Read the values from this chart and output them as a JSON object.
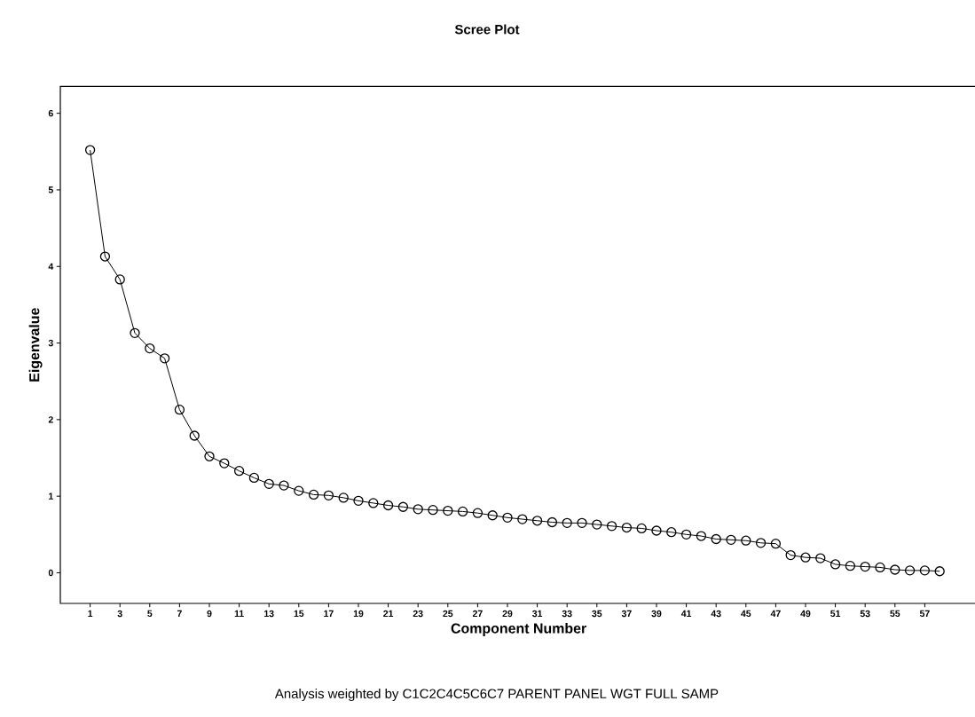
{
  "chart_data": {
    "type": "line",
    "title": "Scree Plot",
    "xlabel": "Component Number",
    "ylabel": "Eigenvalue",
    "annotations": [
      "Analysis weighted by C1C2C4C5C6C7 PARENT PANEL WGT FULL SAMP"
    ],
    "x": [
      1,
      2,
      3,
      4,
      5,
      6,
      7,
      8,
      9,
      10,
      11,
      12,
      13,
      14,
      15,
      16,
      17,
      18,
      19,
      20,
      21,
      22,
      23,
      24,
      25,
      26,
      27,
      28,
      29,
      30,
      31,
      32,
      33,
      34,
      35,
      36,
      37,
      38,
      39,
      40,
      41,
      42,
      43,
      44,
      45,
      46,
      47,
      48,
      49,
      50,
      51,
      52,
      53,
      54,
      55,
      56,
      57,
      58
    ],
    "series": [
      {
        "color": "#000000",
        "values": [
          5.52,
          4.13,
          3.83,
          3.13,
          2.93,
          2.8,
          2.13,
          1.79,
          1.52,
          1.43,
          1.33,
          1.24,
          1.16,
          1.14,
          1.07,
          1.02,
          1.01,
          0.98,
          0.94,
          0.91,
          0.88,
          0.86,
          0.83,
          0.82,
          0.81,
          0.8,
          0.78,
          0.75,
          0.72,
          0.7,
          0.68,
          0.66,
          0.65,
          0.65,
          0.63,
          0.61,
          0.59,
          0.58,
          0.55,
          0.53,
          0.5,
          0.48,
          0.44,
          0.43,
          0.42,
          0.39,
          0.38,
          0.23,
          0.2,
          0.19,
          0.11,
          0.09,
          0.08,
          0.07,
          0.04,
          0.03,
          0.03,
          0.02
        ]
      }
    ],
    "xlim": [
      -1,
      60.5
    ],
    "ylim": [
      -0.4,
      6.35
    ],
    "xticks": [
      1,
      3,
      5,
      7,
      9,
      11,
      13,
      15,
      17,
      19,
      21,
      23,
      25,
      27,
      29,
      31,
      33,
      35,
      37,
      39,
      41,
      43,
      45,
      47,
      49,
      51,
      53,
      55,
      57
    ],
    "yticks": [
      0,
      1,
      2,
      3,
      4,
      5,
      6
    ],
    "grid": false,
    "marker": "circle",
    "line_style": "solid"
  }
}
